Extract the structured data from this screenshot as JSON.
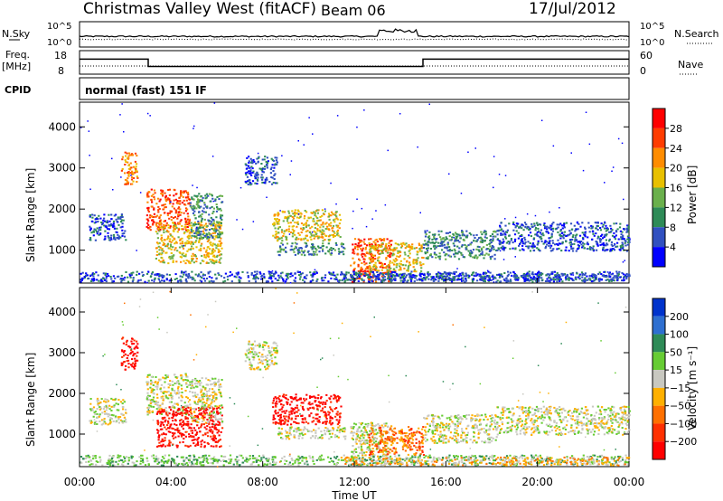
{
  "header": {
    "title": "Christmas Valley West (fitACF)",
    "beam": "Beam 06",
    "date": "17/Jul/2012"
  },
  "chart_data": {
    "type": "heatmap",
    "time_ticks": [
      "00:00",
      "04:00",
      "08:00",
      "12:00",
      "16:00",
      "20:00",
      "00:00"
    ],
    "xlabel": "Time UT",
    "noise_panel": {
      "left_label": "N.Sky",
      "right_label": "N.Search",
      "left_ticks": [
        "10^5",
        "10^0"
      ],
      "right_ticks": [
        "10^5",
        "10^0"
      ]
    },
    "freq_panel": {
      "left_label_line1": "Freq.",
      "left_label_line2": "[MHz]",
      "left_ticks": [
        "18",
        "8"
      ],
      "right_label": "Nave",
      "right_ticks": [
        "60",
        "0"
      ],
      "freq_steps": [
        {
          "start_hour": 0,
          "end_hour": 3,
          "mhz": 15.0
        },
        {
          "start_hour": 3,
          "end_hour": 15,
          "mhz": 10.5
        },
        {
          "start_hour": 15,
          "end_hour": 24,
          "mhz": 15.0
        }
      ]
    },
    "cpid": {
      "label": "CPID",
      "text": "normal (fast) 151 IF"
    },
    "panels": [
      {
        "id": "power",
        "ylabel": "Slant Range [km]",
        "yticks": [
          1000,
          2000,
          3000,
          4000
        ],
        "ylim": [
          200,
          4600
        ],
        "colorbar_label": "Power [dB]",
        "colorbar_ticks": [
          "4",
          "8",
          "12",
          "16",
          "20",
          "24",
          "28"
        ],
        "colors": [
          "#0000ff",
          "#3050c0",
          "#2e8b57",
          "#6ab04c",
          "#e8c000",
          "#ff8c00",
          "#ff3c00",
          "#ff0000"
        ]
      },
      {
        "id": "velocity",
        "ylabel": "Slant Range [km]",
        "yticks": [
          1000,
          2000,
          3000,
          4000
        ],
        "ylim": [
          200,
          4600
        ],
        "colorbar_label": "Velocity [m s⁻¹]",
        "colorbar_ticks": [
          "200",
          "100",
          "50",
          "15",
          "−15",
          "−50",
          "−100",
          "−200"
        ],
        "colors": [
          "#0033cc",
          "#2e6fd0",
          "#2e8b57",
          "#66cc33",
          "#c8c8c0",
          "#ffb000",
          "#ff7000",
          "#ff3000",
          "#ff0000"
        ]
      }
    ],
    "echo_regions": [
      {
        "h0": 0.4,
        "h1": 2.0,
        "r0": 1250,
        "r1": 1900,
        "pl": 1,
        "vl": 4
      },
      {
        "h0": 1.8,
        "h1": 2.5,
        "r0": 2600,
        "r1": 3400,
        "pl": 5,
        "vl": 8
      },
      {
        "h0": 2.9,
        "h1": 4.8,
        "r0": 1500,
        "r1": 2500,
        "pl": 6,
        "vl": 4
      },
      {
        "h0": 3.3,
        "h1": 6.2,
        "r0": 700,
        "r1": 1700,
        "pl": 4,
        "vl": 8
      },
      {
        "h0": 4.8,
        "h1": 6.2,
        "r0": 1300,
        "r1": 2400,
        "pl": 2,
        "vl": 4
      },
      {
        "h0": 7.2,
        "h1": 8.6,
        "r0": 2600,
        "r1": 3300,
        "pl": 1,
        "vl": 4
      },
      {
        "h0": 8.4,
        "h1": 11.4,
        "r0": 1250,
        "r1": 2000,
        "pl": 4,
        "vl": 8
      },
      {
        "h0": 8.6,
        "h1": 11.6,
        "r0": 900,
        "r1": 1200,
        "pl": 2,
        "vl": 4
      },
      {
        "h0": 11.8,
        "h1": 13.6,
        "r0": 250,
        "r1": 1300,
        "pl": 6,
        "vl": 4
      },
      {
        "h0": 12.6,
        "h1": 15.0,
        "r0": 500,
        "r1": 1200,
        "pl": 4,
        "vl": 6
      },
      {
        "h0": 15.0,
        "h1": 18.2,
        "r0": 800,
        "r1": 1500,
        "pl": 2,
        "vl": 4
      },
      {
        "h0": 18.2,
        "h1": 24.0,
        "r0": 1000,
        "r1": 1700,
        "pl": 1,
        "vl": 4
      },
      {
        "h0": 0.0,
        "h1": 24.0,
        "r0": 250,
        "r1": 500,
        "pl": 1,
        "vl": 3
      },
      {
        "h0": 11.4,
        "h1": 24.0,
        "r0": 250,
        "r1": 450,
        "pl": 1,
        "vl": 5
      }
    ]
  }
}
